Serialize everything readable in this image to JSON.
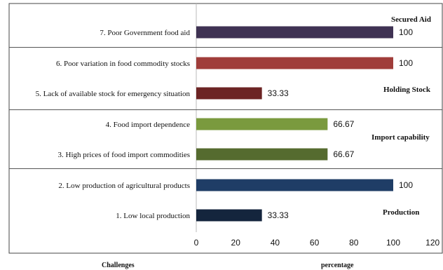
{
  "chart_data": {
    "type": "bar",
    "orientation": "horizontal",
    "categories": [
      "7.  Poor Government food aid",
      "6.    Poor variation in food commodity stocks",
      "5.    Lack of available stock for emergency situation",
      "4.     Food import dependence",
      "3.     High prices of food import commodities",
      "2.     Low production of agricultural products",
      "1.     Low local production"
    ],
    "values": [
      100,
      100,
      33.33,
      66.67,
      66.67,
      100,
      33.33
    ],
    "value_labels": [
      "100",
      "100",
      "33.33",
      "66.67",
      "66.67",
      "100",
      "33.33"
    ],
    "colors": [
      "#3f3253",
      "#a03d3a",
      "#6c2424",
      "#7a9a3e",
      "#556b2f",
      "#1f3d66",
      "#14253d"
    ],
    "groups": [
      {
        "label": "Secured Aid"
      },
      {
        "label": "Holding Stock"
      },
      {
        "label": "Import capability"
      },
      {
        "label": "Production"
      }
    ],
    "xlim": [
      0,
      120
    ],
    "xticks": [
      "0",
      "20",
      "40",
      "60",
      "80",
      "100",
      "120"
    ],
    "xlabel": "percentage",
    "ylabel": "Challenges",
    "grid": false
  }
}
